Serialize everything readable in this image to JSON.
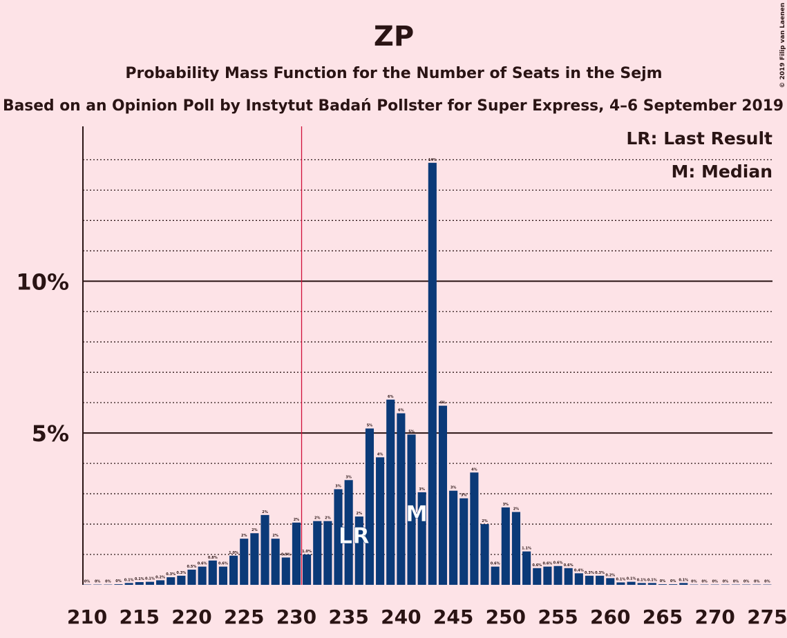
{
  "chart_data": {
    "type": "bar",
    "title": "ZP",
    "subtitle": "Probability Mass Function for the Number of Seats in the Sejm",
    "subtitle2": "Based on an Opinion Poll by Instytut Badań Pollster for Super Express, 4–6 September 2019",
    "copyright": "© 2019 Filip van Laenen",
    "legend": [
      "LR: Last Result",
      "M: Median"
    ],
    "legend_corner": "top-right",
    "color": "#0b3a78",
    "x": [
      210,
      211,
      212,
      213,
      214,
      215,
      216,
      217,
      218,
      219,
      220,
      221,
      222,
      223,
      224,
      225,
      226,
      227,
      228,
      229,
      230,
      231,
      232,
      233,
      234,
      235,
      236,
      237,
      238,
      239,
      240,
      241,
      242,
      243,
      244,
      245,
      246,
      247,
      248,
      249,
      250,
      251,
      252,
      253,
      254,
      255,
      256,
      257,
      258,
      259,
      260,
      261,
      262,
      263,
      264,
      265,
      266,
      267,
      268,
      269,
      270,
      271,
      272,
      273,
      274,
      275
    ],
    "values": [
      0.01,
      0.01,
      0.01,
      0.02,
      0.06,
      0.09,
      0.1,
      0.15,
      0.25,
      0.3,
      0.5,
      0.6,
      0.8,
      0.6,
      0.96,
      1.52,
      1.7,
      2.3,
      1.52,
      0.9,
      2.05,
      1.0,
      2.1,
      2.1,
      3.15,
      3.45,
      2.25,
      5.15,
      4.2,
      6.1,
      5.65,
      4.95,
      3.05,
      13.9,
      5.9,
      3.1,
      2.85,
      3.7,
      2.0,
      0.6,
      2.55,
      2.4,
      1.1,
      0.55,
      0.6,
      0.62,
      0.55,
      0.38,
      0.3,
      0.3,
      0.22,
      0.08,
      0.1,
      0.06,
      0.06,
      0.02,
      0.02,
      0.06,
      0.01,
      0.01,
      0.01,
      0.01,
      0.01,
      0.01,
      0.01,
      0.01
    ],
    "value_labels": [
      "0%",
      "0%",
      "0%",
      "0%",
      "0.1%",
      "0.1%",
      "0.1%",
      "0.2%",
      "0.3%",
      "0.3%",
      "0.5%",
      "0.6%",
      "0.8%",
      "0.6%",
      "1.0%",
      "2%",
      "2%",
      "2%",
      "2%",
      "0.9%",
      "2%",
      "1.0%",
      "2%",
      "2%",
      "3%",
      "3%",
      "2%",
      "5%",
      "4%",
      "6%",
      "6%",
      "5%",
      "3%",
      "14%",
      "6%",
      "3%",
      "3%",
      "4%",
      "2%",
      "0.6%",
      "3%",
      "2%",
      "1.1%",
      "0.6%",
      "0.6%",
      "0.6%",
      "0.6%",
      "0.4%",
      "0.3%",
      "0.3%",
      "0.2%",
      "0.1%",
      "0.1%",
      "0.1%",
      "0.1%",
      "0%",
      "0%",
      "0.1%",
      "0%",
      "0%",
      "0%",
      "0%",
      "0%",
      "0%",
      "0%",
      "0%"
    ],
    "xlim": [
      209.6,
      275.5
    ],
    "xticks": [
      210,
      215,
      220,
      225,
      230,
      235,
      240,
      245,
      250,
      255,
      260,
      265,
      270,
      275
    ],
    "ylim": [
      0,
      15.1
    ],
    "yticks": [
      {
        "value": 5,
        "label": "5%"
      },
      {
        "value": 10,
        "label": "10%"
      }
    ],
    "minor_yticks": [
      1,
      2,
      3,
      4,
      6,
      7,
      8,
      9,
      11,
      12,
      13,
      14
    ],
    "majority_x": 230.5,
    "last_result": {
      "x": 235,
      "label": "LR"
    },
    "median": {
      "x": 241,
      "label": "M"
    }
  }
}
